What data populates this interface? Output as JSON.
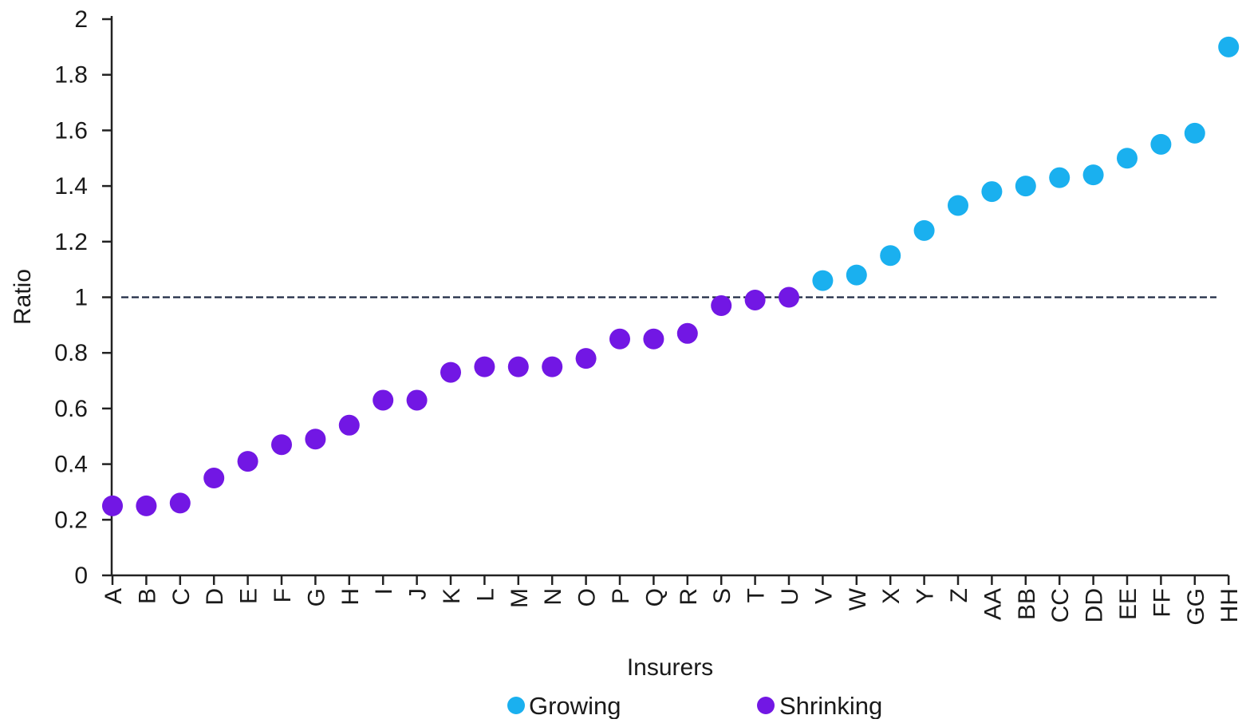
{
  "chart_data": {
    "type": "scatter",
    "title": "",
    "xlabel": "Insurers",
    "ylabel": "Ratio",
    "ylim": [
      0,
      2
    ],
    "yticks": [
      0,
      0.2,
      0.4,
      0.6,
      0.8,
      1,
      1.2,
      1.4,
      1.6,
      1.8,
      2
    ],
    "ytick_labels": [
      "0",
      "0.2",
      "0.4",
      "0.6",
      "0.8",
      "1",
      "1.2",
      "1.4",
      "1.6",
      "1.8",
      "2"
    ],
    "reference_line": {
      "y": 1,
      "style": "dashed",
      "color": "#1f2a44"
    },
    "grid": false,
    "legend_position": "bottom",
    "categories": [
      "A",
      "B",
      "C",
      "D",
      "E",
      "F",
      "G",
      "H",
      "I",
      "J",
      "K",
      "L",
      "M",
      "N",
      "O",
      "P",
      "Q",
      "R",
      "S",
      "T",
      "U",
      "V",
      "W",
      "X",
      "Y",
      "Z",
      "AA",
      "BB",
      "CC",
      "DD",
      "EE",
      "FF",
      "GG",
      "HH"
    ],
    "series": [
      {
        "name": "Growing",
        "color": "#1ab0ef",
        "points": [
          {
            "x": "V",
            "y": 1.06
          },
          {
            "x": "W",
            "y": 1.08
          },
          {
            "x": "X",
            "y": 1.15
          },
          {
            "x": "Y",
            "y": 1.24
          },
          {
            "x": "Z",
            "y": 1.33
          },
          {
            "x": "AA",
            "y": 1.38
          },
          {
            "x": "BB",
            "y": 1.4
          },
          {
            "x": "CC",
            "y": 1.43
          },
          {
            "x": "DD",
            "y": 1.44
          },
          {
            "x": "EE",
            "y": 1.5
          },
          {
            "x": "FF",
            "y": 1.55
          },
          {
            "x": "GG",
            "y": 1.59
          },
          {
            "x": "HH",
            "y": 1.9
          }
        ]
      },
      {
        "name": "Shrinking",
        "color": "#7217e4",
        "points": [
          {
            "x": "A",
            "y": 0.25
          },
          {
            "x": "B",
            "y": 0.25
          },
          {
            "x": "C",
            "y": 0.26
          },
          {
            "x": "D",
            "y": 0.35
          },
          {
            "x": "E",
            "y": 0.41
          },
          {
            "x": "F",
            "y": 0.47
          },
          {
            "x": "G",
            "y": 0.49
          },
          {
            "x": "H",
            "y": 0.54
          },
          {
            "x": "I",
            "y": 0.63
          },
          {
            "x": "J",
            "y": 0.63
          },
          {
            "x": "K",
            "y": 0.73
          },
          {
            "x": "L",
            "y": 0.75
          },
          {
            "x": "M",
            "y": 0.75
          },
          {
            "x": "N",
            "y": 0.75
          },
          {
            "x": "O",
            "y": 0.78
          },
          {
            "x": "P",
            "y": 0.85
          },
          {
            "x": "Q",
            "y": 0.85
          },
          {
            "x": "R",
            "y": 0.87
          },
          {
            "x": "S",
            "y": 0.97
          },
          {
            "x": "T",
            "y": 0.99
          },
          {
            "x": "U",
            "y": 1.0
          }
        ]
      }
    ]
  }
}
